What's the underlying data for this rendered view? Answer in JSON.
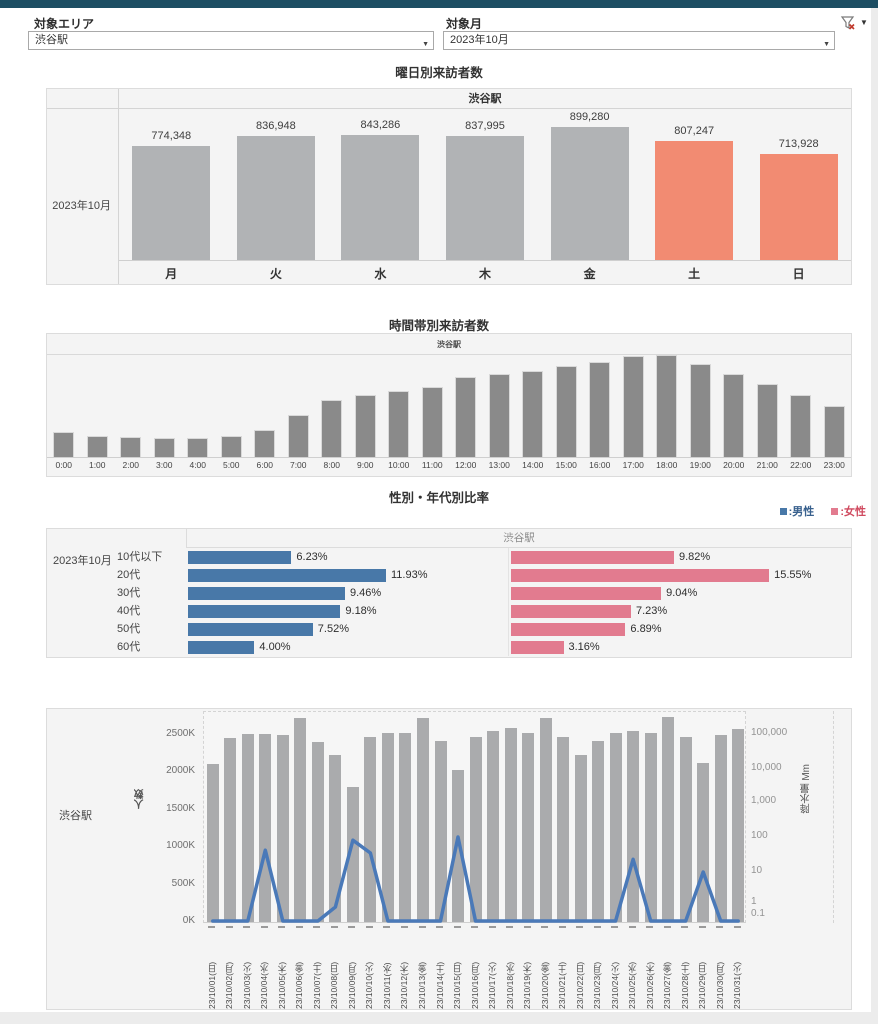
{
  "app": {
    "name": "visitor-dashboard"
  },
  "filters": {
    "area_label": "対象エリア",
    "area_value": "渋谷駅",
    "month_label": "対象月",
    "month_value": "2023年10月",
    "clear_filter_icon": "funnel-with-red-x",
    "menu_caret_icon": "caret-down"
  },
  "colors": {
    "topbar": "#1d4e63",
    "panel_bg": "#f4f4f4",
    "bar_gray_light": "#b1b3b5",
    "bar_weekend": "#f28b72",
    "bar_gray_mid": "#8a8a8a",
    "bar_gray_daily": "#aaabad",
    "line_blue": "#4a79b8",
    "male": "#4878a8",
    "female": "#e27b8f",
    "legend_male_text": "#39618e",
    "legend_female_text": "#d04a5f"
  },
  "chart_data": [
    {
      "id": "weekday-visitors",
      "type": "bar",
      "title": "曜日別来訪者数",
      "panel_header": "渋谷駅",
      "row_label": "2023年10月",
      "categories": [
        "月",
        "火",
        "水",
        "木",
        "金",
        "土",
        "日"
      ],
      "values": [
        774348,
        836948,
        843286,
        837995,
        899280,
        807247,
        713928
      ],
      "value_labels": [
        "774,348",
        "836,948",
        "843,286",
        "837,995",
        "899,280",
        "807,247",
        "713,928"
      ],
      "bar_colors": [
        "gray",
        "gray",
        "gray",
        "gray",
        "gray",
        "weekend",
        "weekend"
      ],
      "ylim": [
        0,
        1000000
      ]
    },
    {
      "id": "hourly-visitors",
      "type": "bar",
      "title": "時間帯別来訪者数",
      "panel_header": "渋谷駅",
      "categories": [
        "0:00",
        "1:00",
        "2:00",
        "3:00",
        "4:00",
        "5:00",
        "6:00",
        "7:00",
        "8:00",
        "9:00",
        "10:00",
        "11:00",
        "12:00",
        "13:00",
        "14:00",
        "15:00",
        "16:00",
        "17:00",
        "18:00",
        "19:00",
        "20:00",
        "21:00",
        "22:00",
        "23:00"
      ],
      "values_pct_of_max": [
        25,
        21,
        20,
        19,
        19,
        21,
        27,
        41,
        56,
        61,
        65,
        69,
        78,
        81,
        84,
        89,
        93,
        99,
        100,
        91,
        81,
        72,
        61,
        50
      ]
    },
    {
      "id": "gender-age-ratio",
      "type": "bar",
      "title": "性別・年代別比率",
      "panel_header": "渋谷駅",
      "row_label": "2023年10月",
      "legend": [
        {
          "label": ":男性",
          "series": "male"
        },
        {
          "label": ":女性",
          "series": "female"
        }
      ],
      "categories": [
        "10代以下",
        "20代",
        "30代",
        "40代",
        "50代",
        "60代"
      ],
      "series": [
        {
          "name": "男性",
          "values": [
            6.23,
            11.93,
            9.46,
            9.18,
            7.52,
            4.0
          ],
          "labels": [
            "6.23%",
            "11.93%",
            "9.46%",
            "9.18%",
            "7.52%",
            "4.00%"
          ]
        },
        {
          "name": "女性",
          "values": [
            9.82,
            15.55,
            9.04,
            7.23,
            6.89,
            3.16
          ],
          "labels": [
            "9.82%",
            "15.55%",
            "9.04%",
            "7.23%",
            "6.89%",
            "3.16%"
          ]
        }
      ]
    },
    {
      "id": "daily-visitors-precipitation",
      "type": "bar+line",
      "row_label": "渋谷駅",
      "ylabel_left": "人数",
      "ylabel_right": "降水量  Mm",
      "y_ticks_left": [
        "2500K",
        "2000K",
        "1500K",
        "1000K",
        "500K",
        "0K"
      ],
      "y_ticks_right": [
        "100,000",
        "10,000",
        "1,000",
        "100",
        "10",
        "1",
        "0.1"
      ],
      "categories": [
        "23/10/01(日)",
        "23/10/02(月)",
        "23/10/03(火)",
        "23/10/04(水)",
        "23/10/05(木)",
        "23/10/06(金)",
        "23/10/07(土)",
        "23/10/08(日)",
        "23/10/09(月)",
        "23/10/10(火)",
        "23/10/11(水)",
        "23/10/12(木)",
        "23/10/13(金)",
        "23/10/14(土)",
        "23/10/15(日)",
        "23/10/16(月)",
        "23/10/17(火)",
        "23/10/18(水)",
        "23/10/19(木)",
        "23/10/20(金)",
        "23/10/21(土)",
        "23/10/22(日)",
        "23/10/23(月)",
        "23/10/24(火)",
        "23/10/25(水)",
        "23/10/26(木)",
        "23/10/27(金)",
        "23/10/28(土)",
        "23/10/29(日)",
        "23/10/30(月)",
        "23/10/31(火)"
      ],
      "series": [
        {
          "name": "人数",
          "unit": "K",
          "values": [
            2090,
            2430,
            2490,
            2490,
            2470,
            2700,
            2380,
            2210,
            1780,
            2450,
            2500,
            2500,
            2700,
            2400,
            2010,
            2450,
            2530,
            2570,
            2500,
            2700,
            2450,
            2210,
            2390,
            2500,
            2530,
            2500,
            2710,
            2450,
            2110,
            2480,
            2560
          ]
        },
        {
          "name": "降水量",
          "unit": "mm",
          "values": [
            0,
            0,
            0,
            42,
            0,
            0,
            0,
            1,
            81,
            35,
            0,
            0,
            0,
            0,
            100,
            0,
            0,
            0,
            0,
            0,
            0,
            0,
            0,
            0,
            23,
            0,
            0,
            0,
            10,
            0,
            0
          ]
        }
      ],
      "ylim_left": [
        0,
        2700
      ],
      "yscale_right": "log"
    }
  ]
}
